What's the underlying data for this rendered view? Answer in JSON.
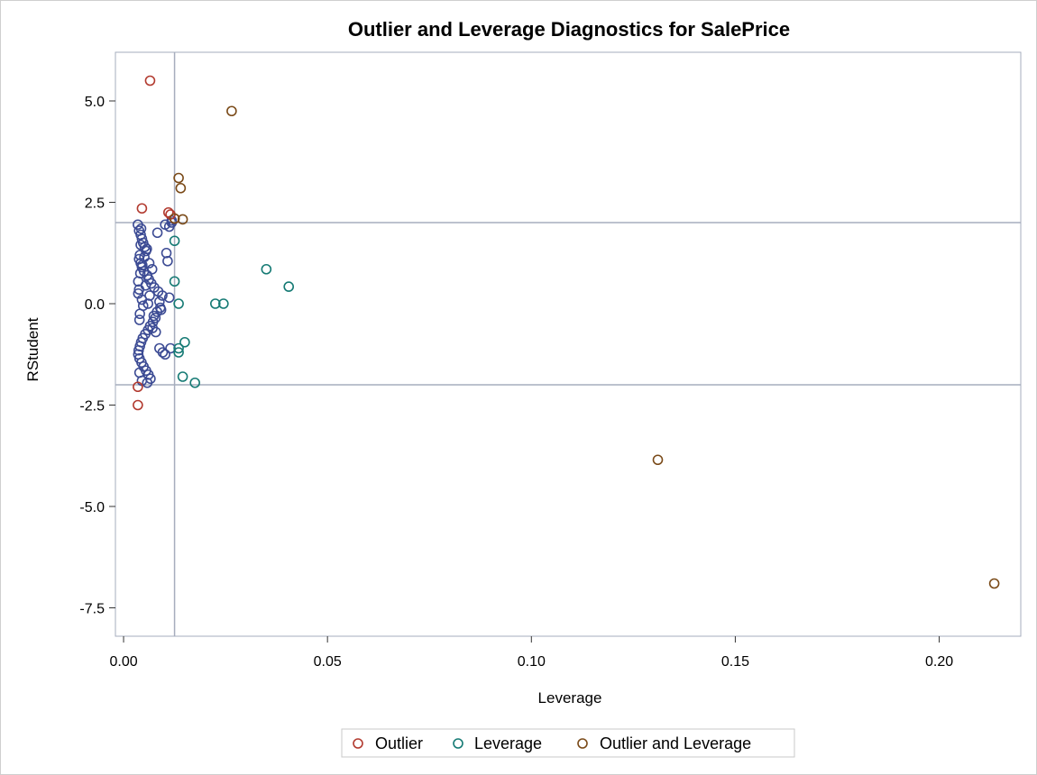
{
  "chart_data": {
    "type": "scatter",
    "title": "Outlier and Leverage Diagnostics for SalePrice",
    "xlabel": "Leverage",
    "ylabel": "RStudent",
    "xlim": [
      -0.002,
      0.22
    ],
    "ylim": [
      -8.2,
      6.2
    ],
    "xticks": [
      0.0,
      0.05,
      0.1,
      0.15,
      0.2
    ],
    "xtick_labels": [
      "0.00",
      "0.05",
      "0.10",
      "0.15",
      "0.20"
    ],
    "yticks": [
      5.0,
      2.5,
      0.0,
      -2.5,
      -5.0,
      -7.5
    ],
    "ytick_labels": [
      "5.0",
      "2.5",
      "0.0",
      "-2.5",
      "-5.0",
      "-7.5"
    ],
    "reference_lines": {
      "x": [
        0.0125
      ],
      "y": [
        2.0,
        -2.0
      ]
    },
    "grid": false,
    "legend_position": "bottom",
    "colors": {
      "normal": "#3c4b94",
      "outlier": "#b23a2f",
      "leverage": "#157a74",
      "outlier_and_leverage": "#7a4a18",
      "reference": "#a6adbd"
    },
    "series": [
      {
        "name": "Outlier",
        "color": "#b23a2f",
        "x": [
          0.0065,
          0.0045,
          0.0035,
          0.0035,
          0.011,
          0.0115,
          0.0125
        ],
        "y": [
          5.5,
          2.35,
          -2.05,
          -2.5,
          2.25,
          2.2,
          2.1
        ]
      },
      {
        "name": "Leverage",
        "color": "#157a74",
        "x": [
          0.0125,
          0.0125,
          0.0135,
          0.0135,
          0.015,
          0.0225,
          0.0245,
          0.035,
          0.0405,
          0.0145,
          0.0175,
          0.0135
        ],
        "y": [
          1.55,
          0.55,
          0.0,
          -1.1,
          -0.95,
          0.0,
          0.0,
          0.85,
          0.42,
          -1.8,
          -1.95,
          -1.2
        ]
      },
      {
        "name": "Outlier and Leverage",
        "color": "#7a4a18",
        "x": [
          0.0265,
          0.0135,
          0.014,
          0.0145,
          0.0125,
          0.131,
          0.2135
        ],
        "y": [
          4.75,
          3.1,
          2.85,
          2.08,
          2.1,
          -3.85,
          -6.9
        ]
      },
      {
        "name": "",
        "color": "#3c4b94",
        "x": [
          0.0035,
          0.0038,
          0.0042,
          0.0045,
          0.0048,
          0.0052,
          0.0055,
          0.004,
          0.0038,
          0.0042,
          0.0045,
          0.005,
          0.0058,
          0.0062,
          0.0068,
          0.0075,
          0.0085,
          0.0095,
          0.0105,
          0.0108,
          0.0112,
          0.009,
          0.0082,
          0.0078,
          0.0072,
          0.0065,
          0.006,
          0.0053,
          0.0047,
          0.0043,
          0.004,
          0.0037,
          0.0036,
          0.0039,
          0.0044,
          0.0049,
          0.0055,
          0.0061,
          0.0066,
          0.0071,
          0.0079,
          0.0088,
          0.0096,
          0.0102,
          0.0115,
          0.006,
          0.0045,
          0.004,
          0.0038,
          0.0036,
          0.0041,
          0.0046,
          0.0051,
          0.0057,
          0.0063,
          0.007,
          0.0045,
          0.0058,
          0.0083,
          0.0102,
          0.0118,
          0.0112,
          0.0043,
          0.0042,
          0.0036,
          0.0039,
          0.0048,
          0.0054,
          0.0064,
          0.0074,
          0.0092,
          0.0118,
          0.0088,
          0.0039
        ],
        "y": [
          1.95,
          1.8,
          1.7,
          1.6,
          1.5,
          1.4,
          1.3,
          1.2,
          1.1,
          1.0,
          0.9,
          0.8,
          0.7,
          0.6,
          0.5,
          0.4,
          0.3,
          0.2,
          1.25,
          1.05,
          0.15,
          -0.1,
          -0.2,
          -0.35,
          -0.45,
          -0.55,
          -0.65,
          -0.75,
          -0.85,
          -0.95,
          -1.05,
          -1.15,
          -1.25,
          -1.35,
          -1.45,
          -1.55,
          -1.65,
          -1.75,
          -1.85,
          -0.6,
          -0.7,
          -1.1,
          -1.2,
          -1.25,
          -1.1,
          0.0,
          0.1,
          -0.25,
          0.35,
          0.55,
          0.75,
          0.95,
          1.15,
          1.35,
          1.0,
          0.85,
          -1.9,
          -1.95,
          1.75,
          1.95,
          2.05,
          1.9,
          1.85,
          1.45,
          0.25,
          -0.4,
          -0.05,
          0.45,
          0.2,
          -0.3,
          -0.15,
          2.0,
          0.05,
          -1.7
        ]
      }
    ],
    "legend": [
      {
        "label": "Outlier",
        "color": "#b23a2f"
      },
      {
        "label": "Leverage",
        "color": "#157a74"
      },
      {
        "label": "Outlier and Leverage",
        "color": "#7a4a18"
      }
    ]
  }
}
